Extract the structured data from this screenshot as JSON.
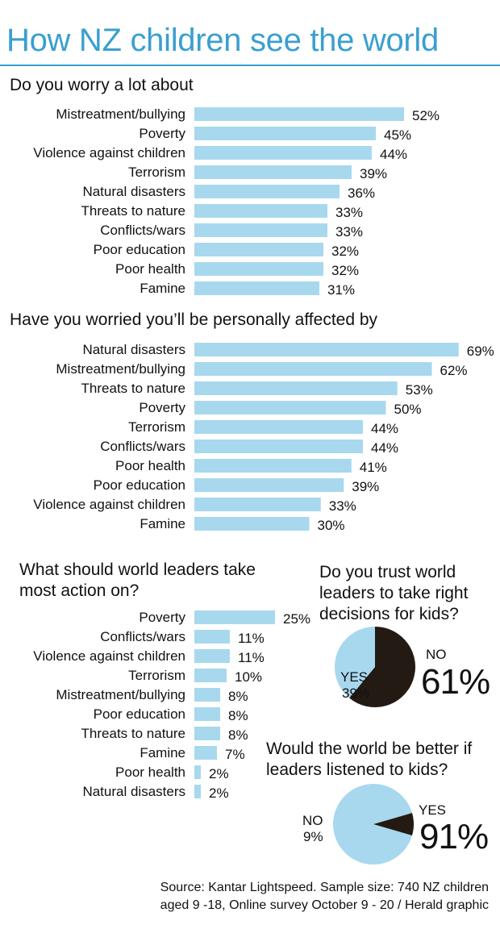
{
  "title": "How NZ children see the world",
  "source_line1": "Source: Kantar Lightspeed. Sample size: 740 NZ children",
  "source_line2": "aged 9 -18, Online survey October 9 - 20 / Herald graphic",
  "chart_data": [
    {
      "type": "bar",
      "orientation": "horizontal",
      "title": "Do you worry a lot about",
      "categories": [
        "Mistreatment/bullying",
        "Poverty",
        "Violence against children",
        "Terrorism",
        "Natural disasters",
        "Threats to nature",
        "Conflicts/wars",
        "Poor education",
        "Poor health",
        "Famine"
      ],
      "values": [
        52,
        45,
        44,
        39,
        36,
        33,
        33,
        32,
        32,
        31
      ],
      "value_suffix": "%",
      "xlim": [
        0,
        100
      ],
      "color": "#a8d8ee"
    },
    {
      "type": "bar",
      "orientation": "horizontal",
      "title": "Have you worried you’ll be personally affected by",
      "categories": [
        "Natural disasters",
        "Mistreatment/bullying",
        "Threats to nature",
        "Poverty",
        "Terrorism",
        "Conflicts/wars",
        "Poor health",
        "Poor education",
        "Violence against children",
        "Famine"
      ],
      "values": [
        69,
        62,
        53,
        50,
        44,
        44,
        41,
        39,
        33,
        30
      ],
      "value_suffix": "%",
      "xlim": [
        0,
        100
      ],
      "color": "#a8d8ee"
    },
    {
      "type": "bar",
      "orientation": "horizontal",
      "title": "What should world leaders take most action on?",
      "categories": [
        "Poverty",
        "Conflicts/wars",
        "Violence against children",
        "Terrorism",
        "Mistreatment/bullying",
        "Poor education",
        "Threats to nature",
        "Famine",
        "Poor health",
        "Natural disasters"
      ],
      "values": [
        25,
        11,
        11,
        10,
        8,
        8,
        8,
        7,
        2,
        2
      ],
      "value_suffix": "%",
      "xlim": [
        0,
        100
      ],
      "color": "#a8d8ee"
    },
    {
      "type": "pie",
      "title": "Do you trust world leaders to take right decisions for kids?",
      "slices": [
        {
          "label": "NO",
          "value": 61,
          "display": "61%",
          "color": "#231a14"
        },
        {
          "label": "YES",
          "value": 39,
          "display": "39%",
          "color": "#a8d8ee"
        }
      ]
    },
    {
      "type": "pie",
      "title": "Would the world be better if leaders listened to kids?",
      "slices": [
        {
          "label": "YES",
          "value": 91,
          "display": "91%",
          "color": "#a8d8ee"
        },
        {
          "label": "NO",
          "value": 9,
          "display": "9%",
          "color": "#231a14"
        }
      ]
    }
  ]
}
